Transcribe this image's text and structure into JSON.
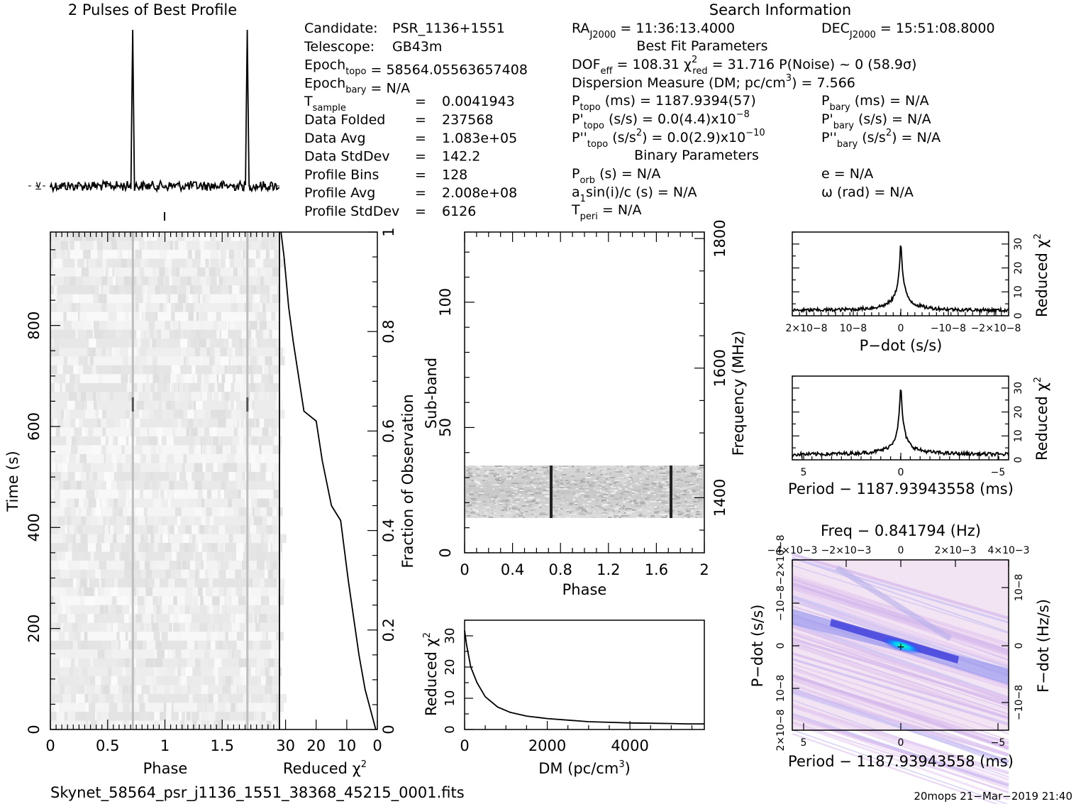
{
  "header": {
    "profile_title": "2 Pulses of Best Profile",
    "search_title": "Search Information",
    "best_fit_title": "Best Fit Parameters",
    "binary_title": "Binary Parameters"
  },
  "info_left": [
    {
      "label": "Candidate:",
      "value": "PSR_1136+1551"
    },
    {
      "label": "Telescope:",
      "value": "GB43m"
    },
    {
      "label": "Epoch",
      "sub": "topo",
      "value": "= 58564.05563657408"
    },
    {
      "label": "Epoch",
      "sub": "bary",
      "value": "= N/A"
    },
    {
      "label": "T",
      "sub": "sample",
      "eq": "=",
      "value": "0.0041943"
    },
    {
      "label": "Data Folded",
      "eq": "=",
      "value": "237568"
    },
    {
      "label": "Data Avg",
      "eq": "=",
      "value": "1.083e+05"
    },
    {
      "label": "Data StdDev",
      "eq": "=",
      "value": "142.2"
    },
    {
      "label": "Profile Bins",
      "eq": "=",
      "value": "128"
    },
    {
      "label": "Profile Avg",
      "eq": "=",
      "value": "2.008e+08"
    },
    {
      "label": "Profile StdDev",
      "eq": "=",
      "value": "6126"
    }
  ],
  "info_mid": {
    "ra": "RA",
    "ra_sub": "J2000",
    "ra_value": "= 11:36:13.4000",
    "dof": "DOF",
    "dof_sub": "eff",
    "dof_value": "= 108.31",
    "chi": "χ",
    "chi_sup": "2",
    "chi_sub": "red",
    "chi_value": "= 31.716",
    "pnoise": "P(Noise) ~ 0",
    "sigma": "(58.9σ)",
    "dm_line": "Dispersion Measure (DM; pc/cm",
    "dm_sup": "3",
    "dm_value": ") = 7.566",
    "ptopo": "P",
    "ptopo_sub": "topo",
    "ptopo_value": "(ms) =  1187.9394(57)",
    "pdtopo": "P'",
    "pdtopo_sub": "topo",
    "pdtopo_value": "(s/s) = 0.0(4.4)x10",
    "pdtopo_exp": "−8",
    "pddtopo": "P''",
    "pddtopo_sub": "topo",
    "pddtopo_value": "(s/s",
    "pddtopo_sup": "2",
    "pddtopo_value2": ") = 0.0(2.9)x10",
    "pddtopo_exp": "−10",
    "porb": "P",
    "porb_sub": "orb",
    "porb_value": "(s) = N/A",
    "a1": "a",
    "a1_sub": "1",
    "a1_value": "sin(i)/c (s) = N/A",
    "tperi": "T",
    "tperi_sub": "peri",
    "tperi_value": "= N/A"
  },
  "info_right": {
    "dec": "DEC",
    "dec_sub": "J2000",
    "dec_value": "= 15:51:08.8000",
    "pbary": "P",
    "pbary_sub": "bary",
    "pbary_value": "(ms) = N/A",
    "pdbary": "P'",
    "pdbary_sub": "bary",
    "pdbary_value": "(s/s) = N/A",
    "pddbary": "P''",
    "pddbary_sub": "bary",
    "pddbary_value": "(s/s",
    "pddbary_sup": "2",
    "pddbary_value2": ") = N/A",
    "e_value": "e = N/A",
    "omega_value": "ω (rad) = N/A"
  },
  "chart_data": [
    {
      "type": "line",
      "title": "2 Pulses of Best Profile",
      "x": [
        0,
        2
      ],
      "peaks_phase": [
        0.72,
        1.72
      ]
    },
    {
      "type": "heatmap",
      "xlabel": "Phase",
      "ylabel": "Time (s)",
      "xticks": [
        "0",
        "0.5",
        "1",
        "1.5"
      ],
      "yticks": [
        "0",
        "200",
        "400",
        "600",
        "800"
      ],
      "xlim": [
        0,
        2
      ],
      "ylim": [
        0,
        985
      ]
    },
    {
      "type": "line",
      "xlabel": "Reduced χ2",
      "ylabel": "Fraction of Observation",
      "xticks": [
        "30",
        "20",
        "10",
        "0"
      ],
      "yticks": [
        "0",
        "0.2",
        "0.4",
        "0.6",
        "0.8",
        "1"
      ],
      "xlim": [
        32,
        0
      ],
      "ylim": [
        0,
        1
      ],
      "x": [
        31.5,
        30.5,
        29,
        27.5,
        25.5,
        24,
        20,
        18,
        15,
        12,
        9.5,
        6,
        4,
        0.5
      ],
      "y": [
        1,
        0.95,
        0.85,
        0.78,
        0.7,
        0.64,
        0.62,
        0.54,
        0.45,
        0.42,
        0.3,
        0.15,
        0.08,
        0
      ]
    },
    {
      "type": "heatmap",
      "xlabel": "Phase",
      "ylabel": "Sub-band",
      "y2label": "Frequency (MHz)",
      "xticks": [
        "0",
        "0.4",
        "0.8",
        "1.2",
        "1.6",
        "2"
      ],
      "yticks": [
        "0",
        "50",
        "100"
      ],
      "y2ticks": [
        "1400",
        "1600",
        "1800"
      ],
      "xlim": [
        0,
        2
      ],
      "ylim": [
        0,
        128
      ],
      "data_bands": [
        14,
        35
      ]
    },
    {
      "type": "line",
      "xlabel": "DM (pc/cm3)",
      "ylabel": "Reduced χ2",
      "xticks": [
        "0",
        "2000",
        "4000"
      ],
      "yticks": [
        "0",
        "10",
        "20",
        "30"
      ],
      "xlim": [
        0,
        5800
      ],
      "ylim": [
        0,
        35
      ],
      "x": [
        0,
        50,
        150,
        300,
        500,
        800,
        1100,
        1500,
        2000,
        2500,
        3000,
        3500,
        4000,
        4500,
        5000,
        5400,
        5800
      ],
      "y": [
        31.7,
        27,
        20,
        15,
        10.5,
        7.2,
        5.5,
        4.3,
        3.5,
        3.0,
        2.5,
        2.3,
        2.1,
        2.0,
        1.9,
        1.8,
        1.8
      ]
    },
    {
      "type": "line",
      "xlabel": "P−dot (s/s)",
      "ylabel": "Reduced χ2",
      "xticks": [
        "2×10−8",
        "10−8",
        "0",
        "−10−8",
        "−2×10−8"
      ],
      "yticks": [
        "0",
        "10",
        "20",
        "30"
      ],
      "xlim": [
        2.3e-08,
        -2.3e-08
      ],
      "ylim": [
        0,
        35
      ],
      "peak": 31.7,
      "baseline": 2
    },
    {
      "type": "line",
      "xlabel": "Period − 1187.93943558 (ms)",
      "ylabel": "Reduced χ2",
      "xticks": [
        "5",
        "0",
        "−5"
      ],
      "yticks": [
        "0",
        "10",
        "20",
        "30"
      ],
      "xlim": [
        5.8,
        -5.3
      ],
      "ylim": [
        0,
        35
      ],
      "peak": 31.7,
      "baseline": 2
    },
    {
      "type": "heatmap",
      "title": "Freq − 0.841794 (Hz)",
      "xlabel": "Period − 1187.93943558 (ms)",
      "ylabel": "P−dot (s/s)",
      "y2label": "F−dot (Hz/s)",
      "xticks": [
        "5",
        "0",
        "−5"
      ],
      "x2ticks": [
        "−4×10−3",
        "−2×10−3",
        "0",
        "2×10−3",
        "4×10−3"
      ],
      "yticks": [
        "2×10−8",
        "10−8",
        "0",
        "−10−8",
        "−2×10−8"
      ],
      "y2ticks": [
        "10−8",
        "0",
        "−10−8"
      ]
    }
  ],
  "footer": {
    "filename": "Skynet_58564_psr_j1136_1551_38368_45215_0001.fits",
    "stamp": "20mops 21−Mar−2019 21:40"
  }
}
